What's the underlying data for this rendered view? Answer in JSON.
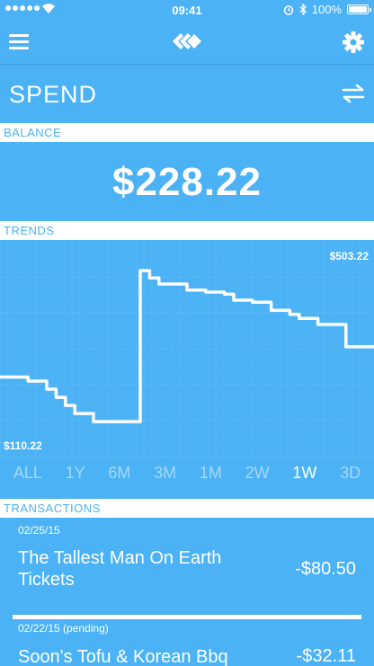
{
  "status": {
    "time": "09:41",
    "battery": "100%"
  },
  "nav": {
    "menu_icon": "menu-icon",
    "logo_icon": "logo-icon",
    "settings_icon": "gear-icon"
  },
  "page": {
    "title": "SPEND",
    "swap_icon": "swap-arrows-icon"
  },
  "balance": {
    "header": "BALANCE",
    "value": "$228.22"
  },
  "trends": {
    "header": "TRENDS",
    "max_label": "$503.22",
    "min_label": "$110.22",
    "ranges": [
      "ALL",
      "1Y",
      "6M",
      "3M",
      "1M",
      "2W",
      "1W",
      "3D"
    ],
    "selected_range": "1W"
  },
  "chart_data": {
    "type": "line",
    "x": [
      0,
      1,
      2,
      3,
      4,
      5,
      6,
      7,
      8,
      9,
      10,
      11,
      12,
      13,
      14,
      15,
      16,
      17,
      18,
      19,
      20,
      21,
      22,
      23,
      24,
      25,
      26,
      27,
      28,
      29,
      30,
      31,
      32,
      33,
      34,
      35,
      36,
      37,
      38,
      39,
      40
    ],
    "values": [
      240,
      240,
      240,
      230,
      230,
      210,
      190,
      170,
      150,
      150,
      130,
      130,
      130,
      130,
      130,
      503,
      485,
      470,
      470,
      470,
      455,
      455,
      450,
      450,
      445,
      430,
      430,
      425,
      425,
      405,
      405,
      395,
      385,
      385,
      370,
      370,
      370,
      315,
      315,
      315,
      315
    ],
    "ylim": [
      110.22,
      503.22
    ],
    "y_axis_labels": [
      "$503.22",
      "$110.22"
    ],
    "grid": true
  },
  "transactions": {
    "header": "TRANSACTIONS",
    "items": [
      {
        "date": "02/25/15",
        "name": "The Tallest Man On Earth Tickets",
        "amount": "-$80.50"
      },
      {
        "date": "02/22/15 (pending)",
        "name": "Soon's Tofu & Korean Bbq",
        "amount": "-$32.11"
      }
    ]
  },
  "colors": {
    "background": "#4ab2f5",
    "grid": "#6ec2f7",
    "text": "#ffffff",
    "inactive_range": "#a8d8f8"
  }
}
